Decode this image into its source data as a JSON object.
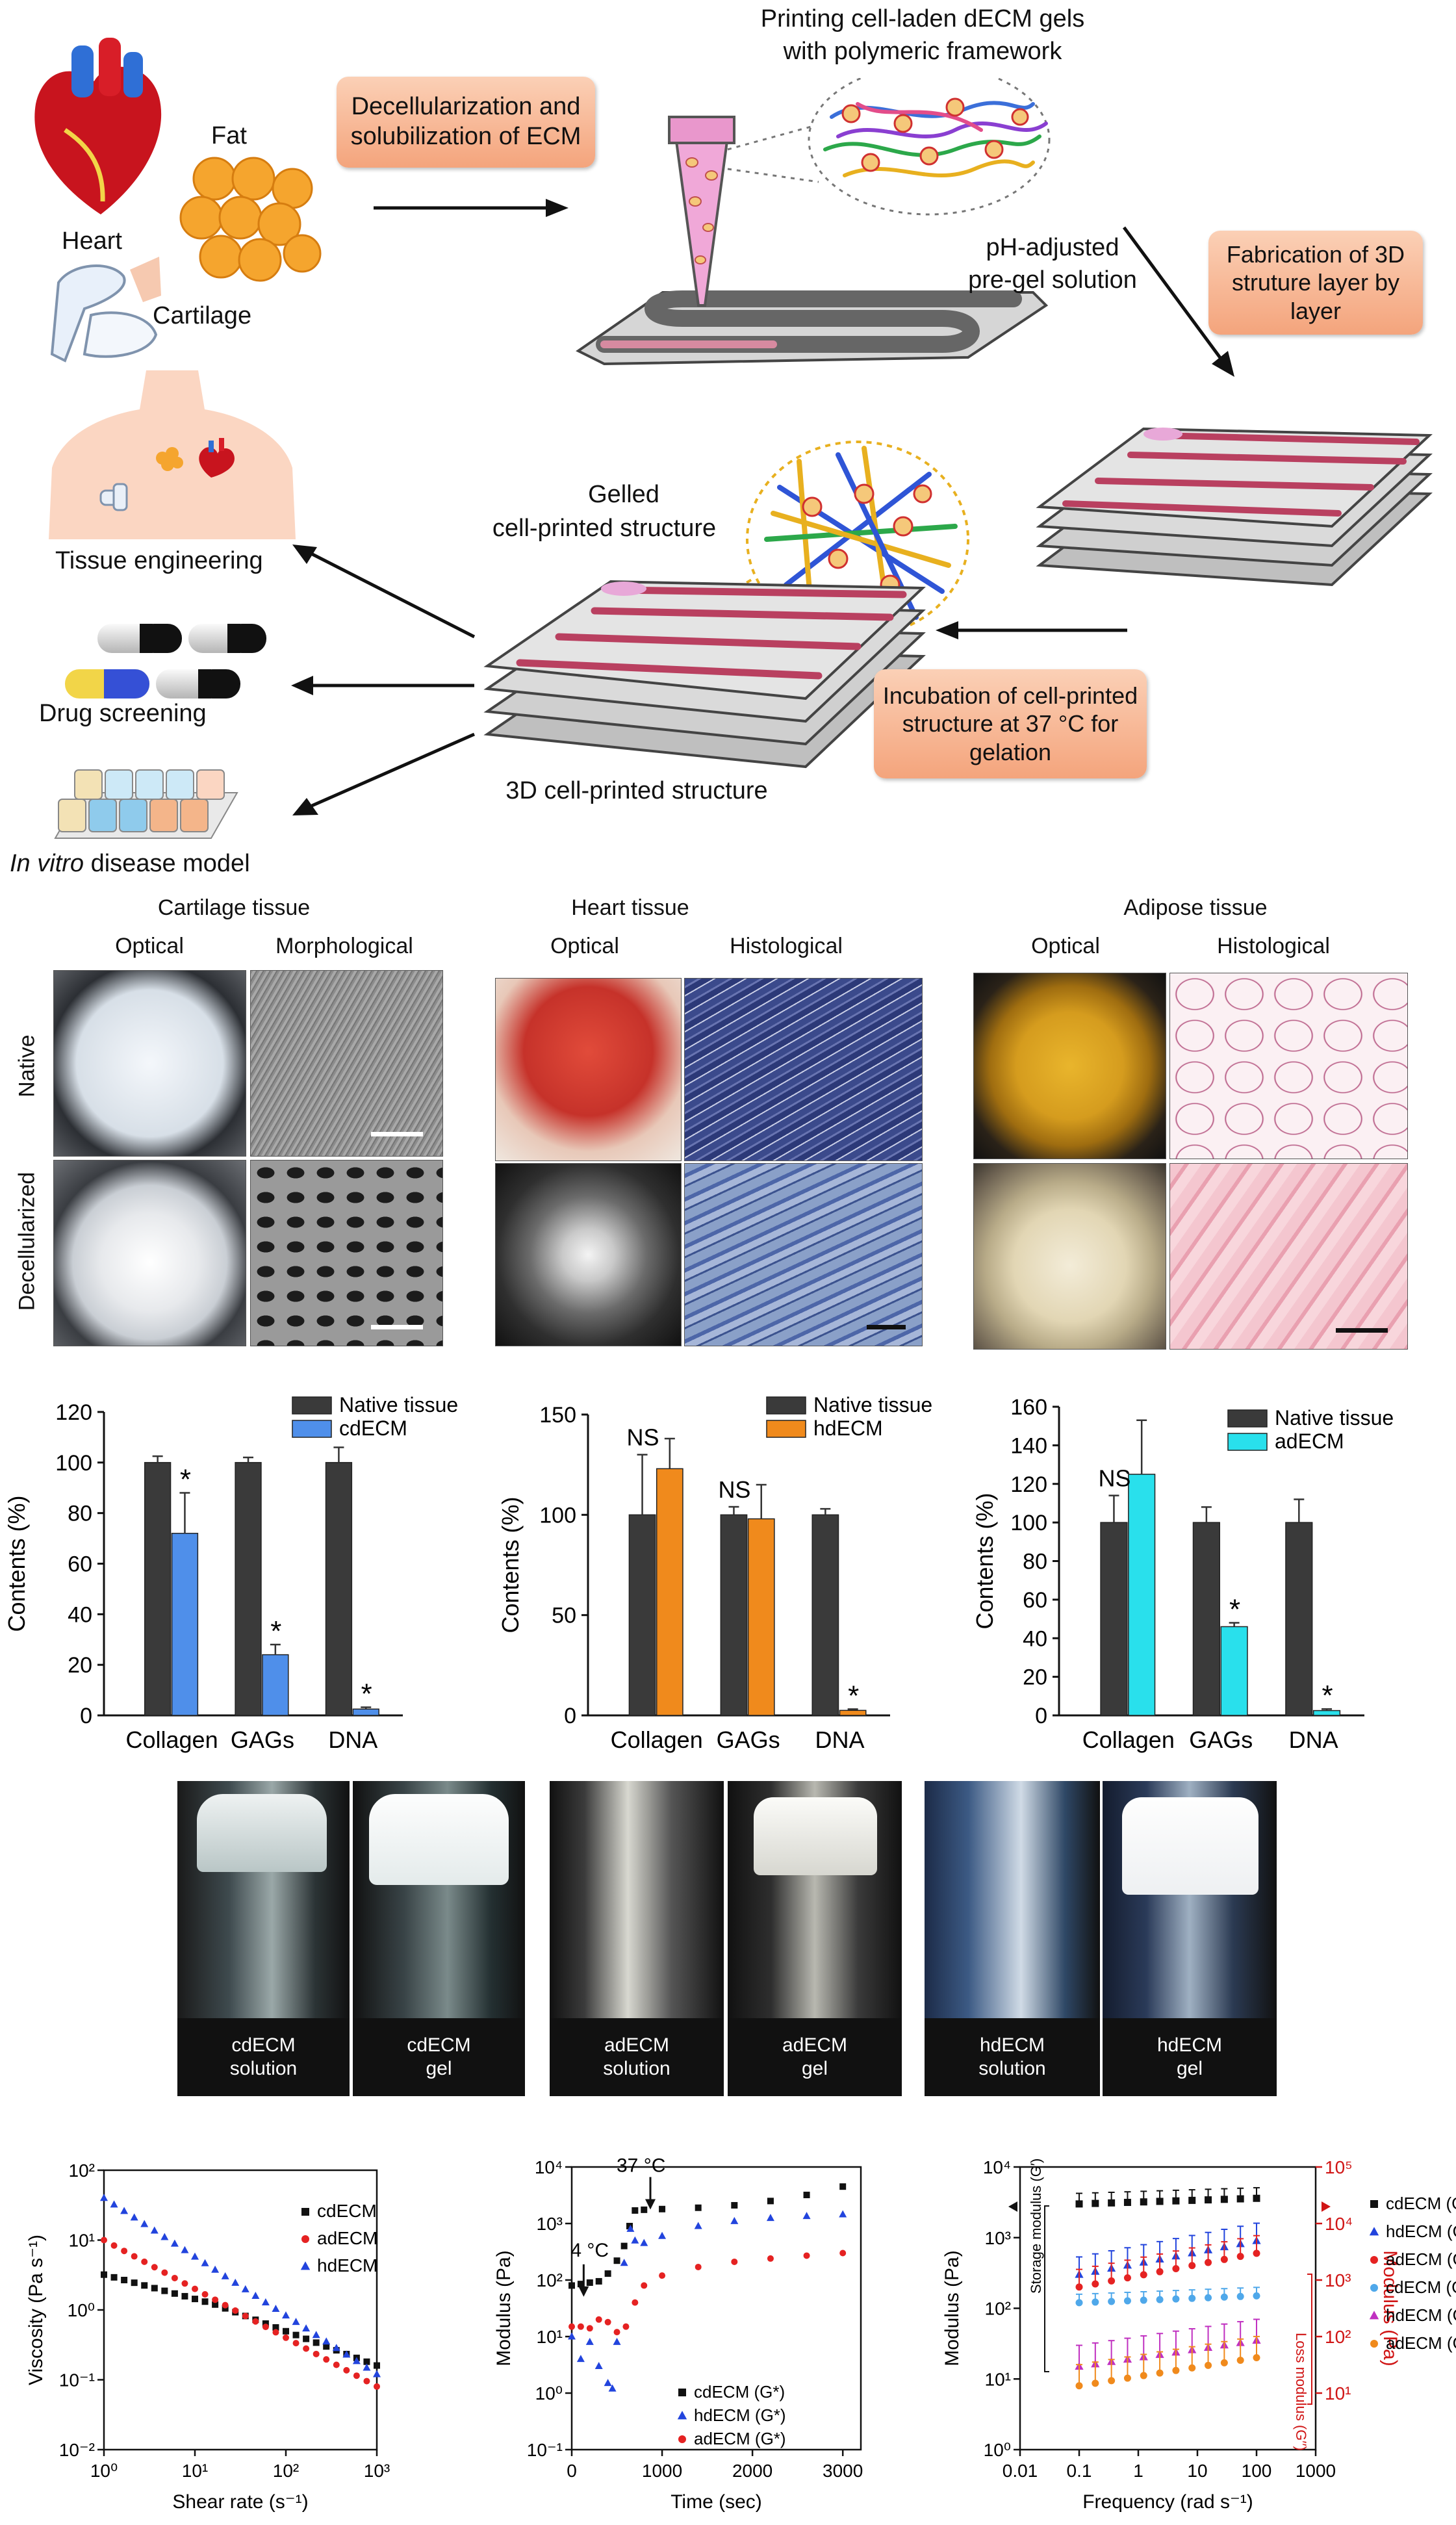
{
  "schematic": {
    "organs": {
      "heart": "Heart",
      "fat": "Fat",
      "cartilage": "Cartilage"
    },
    "step1": "Decellularization and solubilization of ECM",
    "printing_title_1": "Printing cell-laden dECM gels",
    "printing_title_2": "with polymeric framework",
    "pregel_1": "pH-adjusted",
    "pregel_2": "pre-gel solution",
    "fabrication": "Fabrication of 3D struture layer by layer",
    "gelled_1": "Gelled",
    "gelled_2": "cell-printed structure",
    "incubation": "Incubation of cell-printed structure at 37 °C for gelation",
    "printed_3d": "3D cell-printed structure",
    "app_tissue": "Tissue engineering",
    "app_drug": "Drug screening",
    "app_disease_italic": "In vitro",
    "app_disease_rest": " disease model"
  },
  "histology": {
    "cartilage": {
      "title": "Cartilage tissue",
      "col1": "Optical",
      "col2": "Morphological"
    },
    "heart": {
      "title": "Heart tissue",
      "col1": "Optical",
      "col2": "Histological"
    },
    "adipose": {
      "title": "Adipose tissue",
      "col1": "Optical",
      "col2": "Histological"
    },
    "row1": "Native",
    "row2": "Decellularized"
  },
  "vials": [
    {
      "l1": "cdECM",
      "l2": "solution"
    },
    {
      "l1": "cdECM",
      "l2": "gel"
    },
    {
      "l1": "adECM",
      "l2": "solution"
    },
    {
      "l1": "adECM",
      "l2": "gel"
    },
    {
      "l1": "hdECM",
      "l2": "solution"
    },
    {
      "l1": "hdECM",
      "l2": "gel"
    }
  ],
  "chart_data": [
    {
      "type": "bar",
      "ylabel": "Contents (%)",
      "ylim": [
        0,
        120
      ],
      "yticks": [
        "0",
        "20",
        "40",
        "60",
        "80",
        "100",
        "120"
      ],
      "categories": [
        "Collagen",
        "GAGs",
        "DNA"
      ],
      "series": [
        {
          "name": "Native tissue",
          "color": "#3a3a3a",
          "values": [
            100,
            100,
            100
          ],
          "err": [
            2.5,
            2,
            6
          ]
        },
        {
          "name": "cdECM",
          "color": "#4f8fea",
          "values": [
            72,
            24,
            2.5
          ],
          "err": [
            16,
            4,
            0.7
          ]
        }
      ],
      "annotations": [
        "",
        "*",
        "*",
        "*"
      ],
      "ann_list": [
        {
          "series": 1,
          "cat": 0,
          "text": "*"
        },
        {
          "series": 1,
          "cat": 1,
          "text": "*"
        },
        {
          "series": 1,
          "cat": 2,
          "text": "*"
        }
      ]
    },
    {
      "type": "bar",
      "ylabel": "Contents (%)",
      "ylim": [
        0,
        150
      ],
      "yticks": [
        "0",
        "50",
        "100",
        "150"
      ],
      "categories": [
        "Collagen",
        "GAGs",
        "DNA"
      ],
      "series": [
        {
          "name": "Native tissue",
          "color": "#3a3a3a",
          "values": [
            100,
            100,
            100
          ],
          "err": [
            30,
            4,
            3
          ]
        },
        {
          "name": "hdECM",
          "color": "#f08a1c",
          "values": [
            123,
            98,
            2.5
          ],
          "err": [
            15,
            17,
            0.6
          ]
        }
      ],
      "ann_list": [
        {
          "series": 0,
          "cat": 0,
          "text": "NS"
        },
        {
          "series": 0,
          "cat": 1,
          "text": "NS"
        },
        {
          "series": 1,
          "cat": 2,
          "text": "*"
        }
      ]
    },
    {
      "type": "bar",
      "ylabel": "Contents (%)",
      "ylim": [
        0,
        160
      ],
      "yticks": [
        "0",
        "20",
        "40",
        "60",
        "80",
        "100",
        "120",
        "140",
        "160"
      ],
      "categories": [
        "Collagen",
        "GAGs",
        "DNA"
      ],
      "series": [
        {
          "name": "Native tissue",
          "color": "#3a3a3a",
          "values": [
            100,
            100,
            100
          ],
          "err": [
            14,
            8,
            12
          ]
        },
        {
          "name": "adECM",
          "color": "#29e0ec",
          "values": [
            125,
            46,
            2.5
          ],
          "err": [
            28,
            2,
            0.8
          ]
        }
      ],
      "ann_list": [
        {
          "series": 0,
          "cat": 0,
          "text": "NS"
        },
        {
          "series": 1,
          "cat": 1,
          "text": "*"
        },
        {
          "series": 1,
          "cat": 2,
          "text": "*"
        }
      ]
    },
    {
      "type": "scatter",
      "scale": "log-log",
      "xlabel": "Shear rate (s⁻¹)",
      "ylabel": "Viscosity (Pa s⁻¹)",
      "xlim": [
        1,
        1000
      ],
      "ylim": [
        0.01,
        100
      ],
      "xticks": [
        {
          "v": 1,
          "l": "10⁰"
        },
        {
          "v": 10,
          "l": "10¹"
        },
        {
          "v": 100,
          "l": "10²"
        },
        {
          "v": 1000,
          "l": "10³"
        }
      ],
      "yticks": [
        {
          "v": 0.01,
          "l": "10⁻²"
        },
        {
          "v": 0.1,
          "l": "10⁻¹"
        },
        {
          "v": 1,
          "l": "10⁰"
        },
        {
          "v": 10,
          "l": "10¹"
        },
        {
          "v": 100,
          "l": "10²"
        }
      ],
      "series": [
        {
          "name": "cdECM",
          "color": "#111111",
          "marker": "square",
          "x0": 1,
          "x1": 1000,
          "y0": 3.2,
          "y1": 0.16,
          "n": 28
        },
        {
          "name": "adECM",
          "color": "#e52222",
          "marker": "circle",
          "x0": 1,
          "x1": 1000,
          "y0": 10,
          "y1": 0.08,
          "n": 28
        },
        {
          "name": "hdECM",
          "color": "#2244dd",
          "marker": "triangle",
          "x0": 1,
          "x1": 1000,
          "y0": 40,
          "y1": 0.12,
          "n": 28
        }
      ]
    },
    {
      "type": "scatter",
      "scale": "lin-log",
      "xlabel": "Time (sec)",
      "ylabel": "Modulus (Pa)",
      "xlim": [
        0,
        3200
      ],
      "ylim": [
        0.1,
        10000
      ],
      "xticks": [
        {
          "v": 0,
          "l": "0"
        },
        {
          "v": 1000,
          "l": "1000"
        },
        {
          "v": 2000,
          "l": "2000"
        },
        {
          "v": 3000,
          "l": "3000"
        }
      ],
      "yticks": [
        {
          "v": 0.1,
          "l": "10⁻¹"
        },
        {
          "v": 1,
          "l": "10⁰"
        },
        {
          "v": 10,
          "l": "10¹"
        },
        {
          "v": 100,
          "l": "10²"
        },
        {
          "v": 1000,
          "l": "10³"
        },
        {
          "v": 10000,
          "l": "10⁴"
        }
      ],
      "annotations": [
        {
          "text": "4 °C",
          "x": 60,
          "y": 200
        },
        {
          "text": "37 °C",
          "x": 640,
          "y": 7000
        }
      ],
      "series": [
        {
          "name": "cdECM (G*)",
          "color": "#111111",
          "marker": "square",
          "points": [
            [
              0,
              80
            ],
            [
              100,
              85
            ],
            [
              200,
              90
            ],
            [
              300,
              95
            ],
            [
              400,
              130
            ],
            [
              500,
              220
            ],
            [
              580,
              400
            ],
            [
              640,
              900
            ],
            [
              700,
              1700
            ],
            [
              800,
              1750
            ],
            [
              1000,
              1800
            ],
            [
              1400,
              1900
            ],
            [
              1800,
              2100
            ],
            [
              2200,
              2500
            ],
            [
              2600,
              3200
            ],
            [
              3000,
              4500
            ]
          ]
        },
        {
          "name": "hdECM (G*)",
          "color": "#2244dd",
          "marker": "triangle",
          "points": [
            [
              0,
              10
            ],
            [
              100,
              4
            ],
            [
              200,
              8
            ],
            [
              300,
              3
            ],
            [
              400,
              1.5
            ],
            [
              450,
              1.2
            ],
            [
              500,
              8
            ],
            [
              580,
              200
            ],
            [
              650,
              800
            ],
            [
              700,
              500
            ],
            [
              800,
              450
            ],
            [
              1000,
              600
            ],
            [
              1400,
              900
            ],
            [
              1800,
              1100
            ],
            [
              2200,
              1250
            ],
            [
              2600,
              1350
            ],
            [
              3000,
              1450
            ]
          ]
        },
        {
          "name": "adECM (G*)",
          "color": "#e52222",
          "marker": "circle",
          "points": [
            [
              0,
              15
            ],
            [
              100,
              15
            ],
            [
              200,
              14
            ],
            [
              300,
              20
            ],
            [
              400,
              18
            ],
            [
              500,
              12
            ],
            [
              600,
              15
            ],
            [
              700,
              40
            ],
            [
              800,
              80
            ],
            [
              1000,
              120
            ],
            [
              1400,
              170
            ],
            [
              1800,
              210
            ],
            [
              2200,
              240
            ],
            [
              2600,
              270
            ],
            [
              3000,
              300
            ]
          ]
        }
      ]
    },
    {
      "type": "scatter",
      "scale": "log-log",
      "xlabel": "Frequency (rad s⁻¹)",
      "ylabel": "Modulus (Pa)",
      "y2label": "Modulus (Pa)",
      "storage_label": "Storage modulus (G′)",
      "loss_label": "Loss modulus (G′′)",
      "xlim": [
        0.01,
        1000
      ],
      "ylim": [
        1,
        10000
      ],
      "y2lim": [
        1,
        100000
      ],
      "xticks": [
        {
          "v": 0.01,
          "l": "0.01"
        },
        {
          "v": 0.1,
          "l": "0.1"
        },
        {
          "v": 1,
          "l": "1"
        },
        {
          "v": 10,
          "l": "10"
        },
        {
          "v": 100,
          "l": "100"
        },
        {
          "v": 1000,
          "l": "1000"
        }
      ],
      "yticks": [
        {
          "v": 1,
          "l": "10⁰"
        },
        {
          "v": 10,
          "l": "10¹"
        },
        {
          "v": 100,
          "l": "10²"
        },
        {
          "v": 1000,
          "l": "10³"
        },
        {
          "v": 10000,
          "l": "10⁴"
        }
      ],
      "y2ticks": [
        {
          "v": 10,
          "l": "10¹"
        },
        {
          "v": 100,
          "l": "10²"
        },
        {
          "v": 1000,
          "l": "10³"
        },
        {
          "v": 10000,
          "l": "10⁴"
        },
        {
          "v": 100000,
          "l": "10⁵"
        }
      ],
      "series": [
        {
          "name": "cdECM (G′)",
          "color": "#111111",
          "marker": "square",
          "y0": 3000,
          "y1": 3600,
          "err": 0.15
        },
        {
          "name": "hdECM (G′)",
          "color": "#2244dd",
          "marker": "triangle",
          "y0": 300,
          "y1": 900,
          "err": 0.25
        },
        {
          "name": "adECM (G′)",
          "color": "#e52222",
          "marker": "circle",
          "y0": 200,
          "y1": 600,
          "err": 0.25
        },
        {
          "name": "cdECM (G′′)",
          "color": "#4fa8ea",
          "marker": "circle",
          "y0": 120,
          "y1": 150,
          "err": 0.12
        },
        {
          "name": "hdECM (G′′)",
          "color": "#c030c0",
          "marker": "triangle",
          "y0": 15,
          "y1": 35,
          "err": 0.3
        },
        {
          "name": "adECM (G′′)",
          "color": "#f08a1c",
          "marker": "circle",
          "y0": 8,
          "y1": 20,
          "err": 0.3
        }
      ]
    }
  ]
}
